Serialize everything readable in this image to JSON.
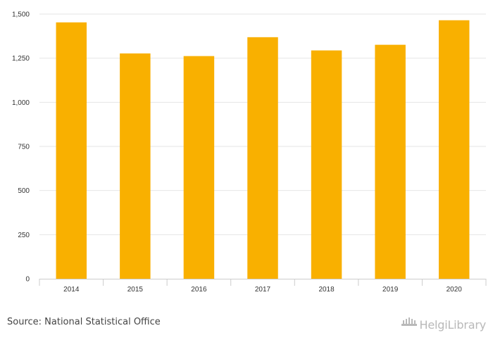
{
  "chart_data": {
    "type": "bar",
    "categories": [
      "2014",
      "2015",
      "2016",
      "2017",
      "2018",
      "2019",
      "2020"
    ],
    "values": [
      1453,
      1277,
      1262,
      1369,
      1294,
      1326,
      1465
    ],
    "yticks": [
      "0",
      "250",
      "500",
      "750",
      "1,000",
      "1,250",
      "1,500"
    ],
    "ytick_values": [
      0,
      250,
      500,
      750,
      1000,
      1250,
      1500
    ],
    "ylim": [
      0,
      1500
    ],
    "grid": true,
    "bar_color": "#f9b000",
    "title": "",
    "xlabel": "",
    "ylabel": ""
  },
  "footer": {
    "source": "Source: National Statistical Office",
    "logo_text": "HelgiLibrary",
    "logo_icon": "library-building-icon"
  }
}
